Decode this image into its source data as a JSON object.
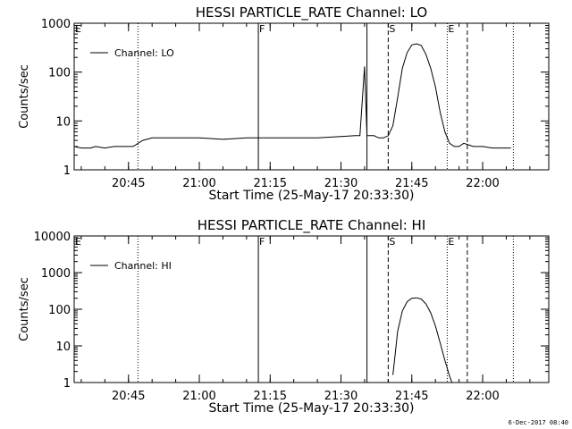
{
  "chart_data": [
    {
      "type": "line",
      "title": "HESSI PARTICLE_RATE Channel: LO",
      "xlabel": "Start Time (25-May-17 20:33:30)",
      "ylabel": "Counts/sec",
      "yscale": "log",
      "ylim": [
        1,
        1000
      ],
      "xlim": [
        "20:33:30",
        "22:14:00"
      ],
      "x_ticks": [
        "20:45",
        "21:00",
        "21:15",
        "21:30",
        "21:45",
        "22:00"
      ],
      "y_ticks": [
        "1",
        "10",
        "100",
        "1000"
      ],
      "legend": "top-left",
      "series": [
        {
          "name": "Channel: LO",
          "color": "#000000",
          "x": [
            "20:33:30",
            "20:35:00",
            "20:37:00",
            "20:38:00",
            "20:40:00",
            "20:42:00",
            "20:44:00",
            "20:46:00",
            "20:48:00",
            "20:50:00",
            "20:55:00",
            "21:00:00",
            "21:05:00",
            "21:10:00",
            "21:15:00",
            "21:20:00",
            "21:25:00",
            "21:30:00",
            "21:33:00",
            "21:34:00",
            "21:35:00",
            "21:35:30",
            "21:36:00",
            "21:36:30",
            "21:37:00",
            "21:38:00",
            "21:39:00",
            "21:40:00",
            "21:41:00",
            "21:42:00",
            "21:43:00",
            "21:44:00",
            "21:45:00",
            "21:46:00",
            "21:47:00",
            "21:48:00",
            "21:49:00",
            "21:50:00",
            "21:51:00",
            "21:52:00",
            "21:53:00",
            "21:54:00",
            "21:55:00",
            "21:56:00",
            "21:58:00",
            "22:00:00",
            "22:02:00",
            "22:03:00",
            "22:06:00"
          ],
          "y": [
            3,
            2.8,
            2.8,
            3,
            2.8,
            3,
            3,
            3,
            4,
            4.5,
            4.5,
            4.5,
            4.2,
            4.5,
            4.5,
            4.5,
            4.5,
            4.8,
            5,
            5,
            130,
            5,
            5,
            5,
            5,
            4.5,
            4.5,
            5,
            8,
            30,
            120,
            250,
            360,
            380,
            350,
            230,
            120,
            50,
            15,
            6,
            3.5,
            3,
            3,
            3.5,
            3,
            3,
            2.8,
            2.8,
            2.8
          ]
        }
      ],
      "markers": [
        {
          "label": "E",
          "time": "20:33:30",
          "style": "solid"
        },
        {
          "label": "",
          "time": "20:47:00",
          "style": "dotted"
        },
        {
          "label": "F",
          "time": "21:12:30",
          "style": "solid"
        },
        {
          "label": "",
          "time": "21:35:30",
          "style": "solid"
        },
        {
          "label": "S",
          "time": "21:40:00",
          "style": "dashed"
        },
        {
          "label": "E",
          "time": "21:52:30",
          "style": "dotted"
        },
        {
          "label": "",
          "time": "21:56:45",
          "style": "dashed"
        },
        {
          "label": "",
          "time": "22:06:30",
          "style": "dotted"
        }
      ]
    },
    {
      "type": "line",
      "title": "HESSI PARTICLE_RATE Channel: HI",
      "xlabel": "Start Time (25-May-17 20:33:30)",
      "ylabel": "Counts/sec",
      "yscale": "log",
      "ylim": [
        1,
        10000
      ],
      "xlim": [
        "20:33:30",
        "22:14:00"
      ],
      "x_ticks": [
        "20:45",
        "21:00",
        "21:15",
        "21:30",
        "21:45",
        "22:00"
      ],
      "y_ticks": [
        "1",
        "10",
        "100",
        "1000",
        "10000"
      ],
      "legend": "top-left",
      "series": [
        {
          "name": "Channel: HI",
          "color": "#000000",
          "x": [
            "21:41:00",
            "21:41:20",
            "21:42:00",
            "21:43:00",
            "21:44:00",
            "21:45:00",
            "21:46:00",
            "21:47:00",
            "21:48:00",
            "21:49:00",
            "21:50:00",
            "21:51:00",
            "21:52:00",
            "21:53:00",
            "21:53:30"
          ],
          "y": [
            1.6,
            4,
            25,
            90,
            160,
            200,
            205,
            190,
            140,
            80,
            35,
            12,
            4,
            1.5,
            1
          ]
        }
      ],
      "markers": [
        {
          "label": "E",
          "time": "20:33:30",
          "style": "solid"
        },
        {
          "label": "",
          "time": "20:47:00",
          "style": "dotted"
        },
        {
          "label": "F",
          "time": "21:12:30",
          "style": "solid"
        },
        {
          "label": "",
          "time": "21:35:30",
          "style": "solid"
        },
        {
          "label": "S",
          "time": "21:40:00",
          "style": "dashed"
        },
        {
          "label": "E",
          "time": "21:52:30",
          "style": "dotted"
        },
        {
          "label": "",
          "time": "21:56:45",
          "style": "dashed"
        },
        {
          "label": "",
          "time": "22:06:30",
          "style": "dotted"
        }
      ]
    }
  ],
  "footer": {
    "date_stamp": "6-Dec-2017 08:40"
  }
}
